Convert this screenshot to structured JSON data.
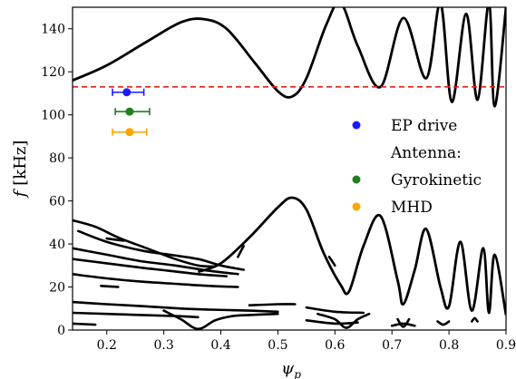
{
  "chart_data": {
    "type": "line",
    "xlabel": "ψ_p",
    "ylabel": "f [kHz]",
    "xlabel_main": "ψ",
    "xlabel_sub": "p",
    "ylabel_var": "f",
    "ylabel_unit": "[kHz]",
    "xlim": [
      0.14,
      0.9
    ],
    "ylim": [
      0,
      150
    ],
    "xticks": [
      0.2,
      0.3,
      0.4,
      0.5,
      0.6,
      0.7,
      0.8,
      0.9
    ],
    "yticks": [
      0,
      20,
      40,
      60,
      80,
      100,
      120,
      140
    ],
    "grid": false,
    "reference_line": {
      "y": 113,
      "color": "#e8201c",
      "style": "dashed"
    },
    "points": [
      {
        "name": "EP drive",
        "x": 0.235,
        "y": 110.5,
        "xerr": [
          0.21,
          0.265
        ],
        "color": "#1a1aff"
      },
      {
        "name": "Gyrokinetic",
        "x": 0.24,
        "y": 101.5,
        "xerr": [
          0.215,
          0.275
        ],
        "color": "#1f7f1f"
      },
      {
        "name": "MHD",
        "x": 0.24,
        "y": 92,
        "xerr": [
          0.21,
          0.27
        ],
        "color": "#ffa500"
      }
    ],
    "legend": {
      "placement": "right",
      "entries": [
        {
          "label": "EP drive",
          "color": "#1a1aff",
          "marker": true
        },
        {
          "label": "Antenna:",
          "color": null,
          "marker": false
        },
        {
          "label": "Gyrokinetic",
          "color": "#1f7f1f",
          "marker": true
        },
        {
          "label": "MHD",
          "color": "#ffa500",
          "marker": true
        }
      ]
    },
    "upper_continuum": {
      "x": [
        0.14,
        0.2,
        0.27,
        0.33,
        0.37,
        0.41,
        0.46,
        0.5,
        0.525,
        0.55,
        0.585,
        0.61,
        0.64,
        0.68,
        0.72,
        0.76,
        0.785,
        0.805,
        0.83,
        0.85,
        0.87,
        0.88,
        0.9
      ],
      "y": [
        116,
        123,
        134,
        143,
        144.5,
        140,
        124,
        111,
        108.5,
        117,
        142,
        152,
        132,
        113,
        145,
        117,
        152,
        106,
        147,
        107,
        152,
        104,
        150
      ]
    },
    "lower_continuum": {
      "x": [
        0.36,
        0.4,
        0.45,
        0.5,
        0.525,
        0.55,
        0.58,
        0.61,
        0.625,
        0.65,
        0.68,
        0.71,
        0.72,
        0.74,
        0.76,
        0.785,
        0.8,
        0.82,
        0.84,
        0.86,
        0.87,
        0.88,
        0.9
      ],
      "y": [
        27,
        31,
        43,
        57,
        61.5,
        56,
        36,
        21,
        18,
        39,
        53,
        23,
        12,
        28,
        47,
        20,
        11,
        41,
        9,
        38,
        8,
        35,
        7
      ]
    },
    "fragments": [
      {
        "x": [
          0.14,
          0.18,
          0.22,
          0.27,
          0.32,
          0.36,
          0.39
        ],
        "y": [
          51,
          48,
          43,
          38,
          33,
          30,
          29.5
        ]
      },
      {
        "x": [
          0.15,
          0.2,
          0.26,
          0.31,
          0.36,
          0.4,
          0.44
        ],
        "y": [
          46,
          41,
          37,
          35,
          33,
          30,
          28
        ]
      },
      {
        "x": [
          0.14,
          0.2,
          0.26,
          0.32,
          0.38,
          0.43
        ],
        "y": [
          38,
          35,
          32,
          30,
          27.5,
          26
        ]
      },
      {
        "x": [
          0.14,
          0.2,
          0.26,
          0.31,
          0.36,
          0.41
        ],
        "y": [
          33,
          31,
          29,
          27.5,
          26,
          25
        ]
      },
      {
        "x": [
          0.14,
          0.2,
          0.26,
          0.32,
          0.38,
          0.43
        ],
        "y": [
          26,
          24,
          22.5,
          21.5,
          20.5,
          20
        ]
      },
      {
        "x": [
          0.14,
          0.2,
          0.27,
          0.33,
          0.38,
          0.45,
          0.5
        ],
        "y": [
          13,
          12,
          11,
          10,
          9.5,
          9,
          8.5
        ]
      },
      {
        "x": [
          0.14,
          0.2,
          0.26,
          0.32,
          0.36
        ],
        "y": [
          8,
          7.5,
          7,
          6.5,
          6
        ]
      },
      {
        "x": [
          0.14,
          0.18
        ],
        "y": [
          3,
          2.5
        ]
      },
      {
        "x": [
          0.3,
          0.33,
          0.36,
          0.39,
          0.42,
          0.45,
          0.5
        ],
        "y": [
          9,
          5,
          0.5,
          4.5,
          6.5,
          7,
          7.5
        ]
      },
      {
        "x": [
          0.45,
          0.5,
          0.53
        ],
        "y": [
          11.5,
          12,
          12
        ]
      },
      {
        "x": [
          0.2,
          0.23
        ],
        "y": [
          42.5,
          41.5
        ]
      },
      {
        "x": [
          0.19,
          0.22
        ],
        "y": [
          20.5,
          20
        ]
      },
      {
        "x": [
          0.43,
          0.44
        ],
        "y": [
          34,
          39
        ]
      },
      {
        "x": [
          0.57,
          0.6,
          0.62,
          0.64,
          0.66
        ],
        "y": [
          7.5,
          5,
          1,
          5,
          7.5
        ]
      },
      {
        "x": [
          0.55,
          0.6,
          0.64
        ],
        "y": [
          4.5,
          3,
          3.5
        ]
      },
      {
        "x": [
          0.55,
          0.6,
          0.65
        ],
        "y": [
          10.5,
          8.5,
          8
        ]
      },
      {
        "x": [
          0.59,
          0.6
        ],
        "y": [
          34,
          30
        ]
      },
      {
        "x": [
          0.71,
          0.72,
          0.73
        ],
        "y": [
          5,
          1.5,
          5
        ]
      },
      {
        "x": [
          0.78,
          0.79,
          0.8
        ],
        "y": [
          4,
          2.5,
          4
        ]
      },
      {
        "x": [
          0.84,
          0.845,
          0.85
        ],
        "y": [
          4,
          5.5,
          4
        ]
      },
      {
        "x": [
          0.7,
          0.72,
          0.74
        ],
        "y": [
          2,
          3,
          2
        ]
      }
    ]
  }
}
